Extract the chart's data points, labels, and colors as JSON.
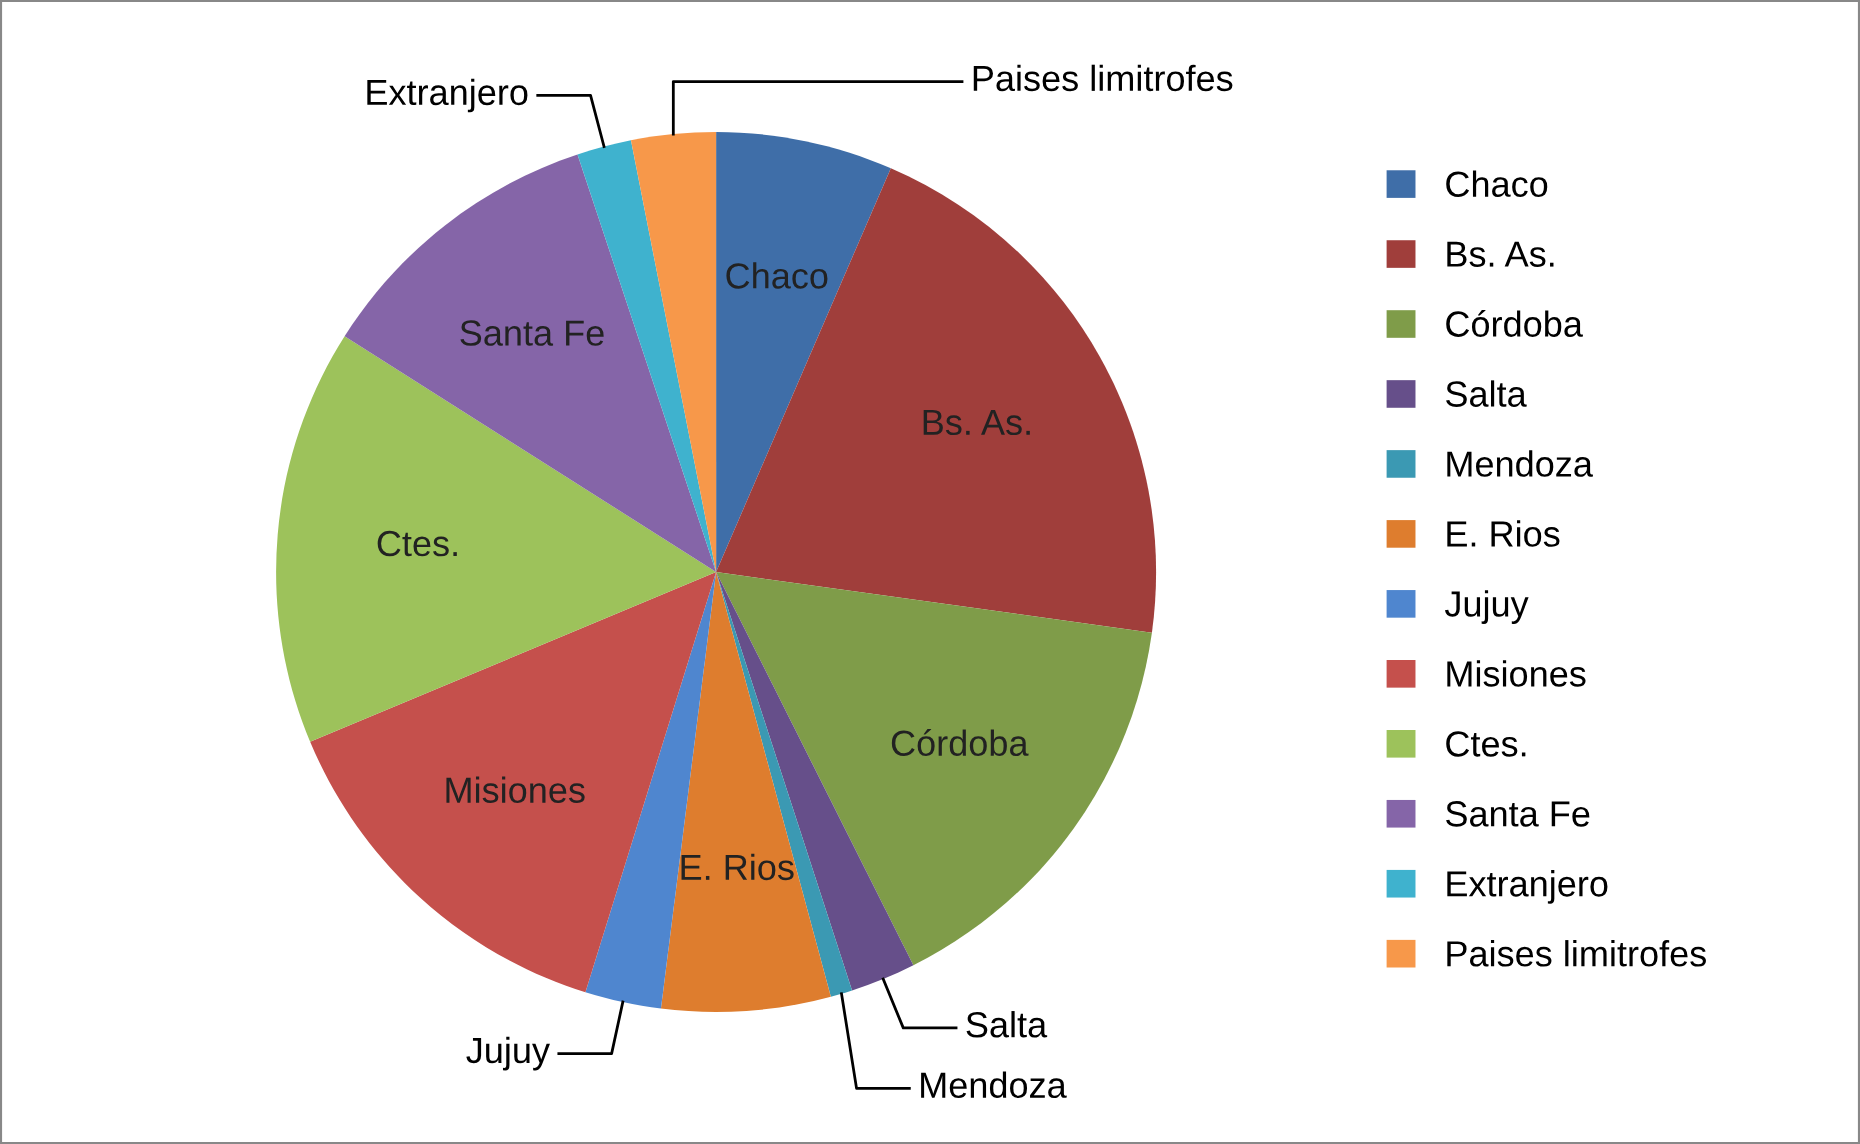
{
  "chart_data": {
    "type": "pie",
    "categories": [
      "Chaco",
      "Bs. As.",
      "Córdoba",
      "Salta",
      "Mendoza",
      "E. Rios",
      "Jujuy",
      "Misiones",
      "Ctes.",
      "Santa Fe",
      "Extranjero",
      "Paises limitrofes"
    ],
    "values": [
      6.5,
      20.7,
      15.4,
      2.4,
      0.8,
      6.2,
      2.8,
      13.9,
      15.3,
      10.9,
      2.0,
      3.1
    ],
    "colors": [
      "#3f6ea8",
      "#a03e3b",
      "#7f9c49",
      "#664f8a",
      "#3b99b3",
      "#de7d2e",
      "#4f86cf",
      "#c5504c",
      "#9dc25b",
      "#8565a8",
      "#3fb2ce",
      "#f7984a"
    ],
    "legend": "right"
  }
}
